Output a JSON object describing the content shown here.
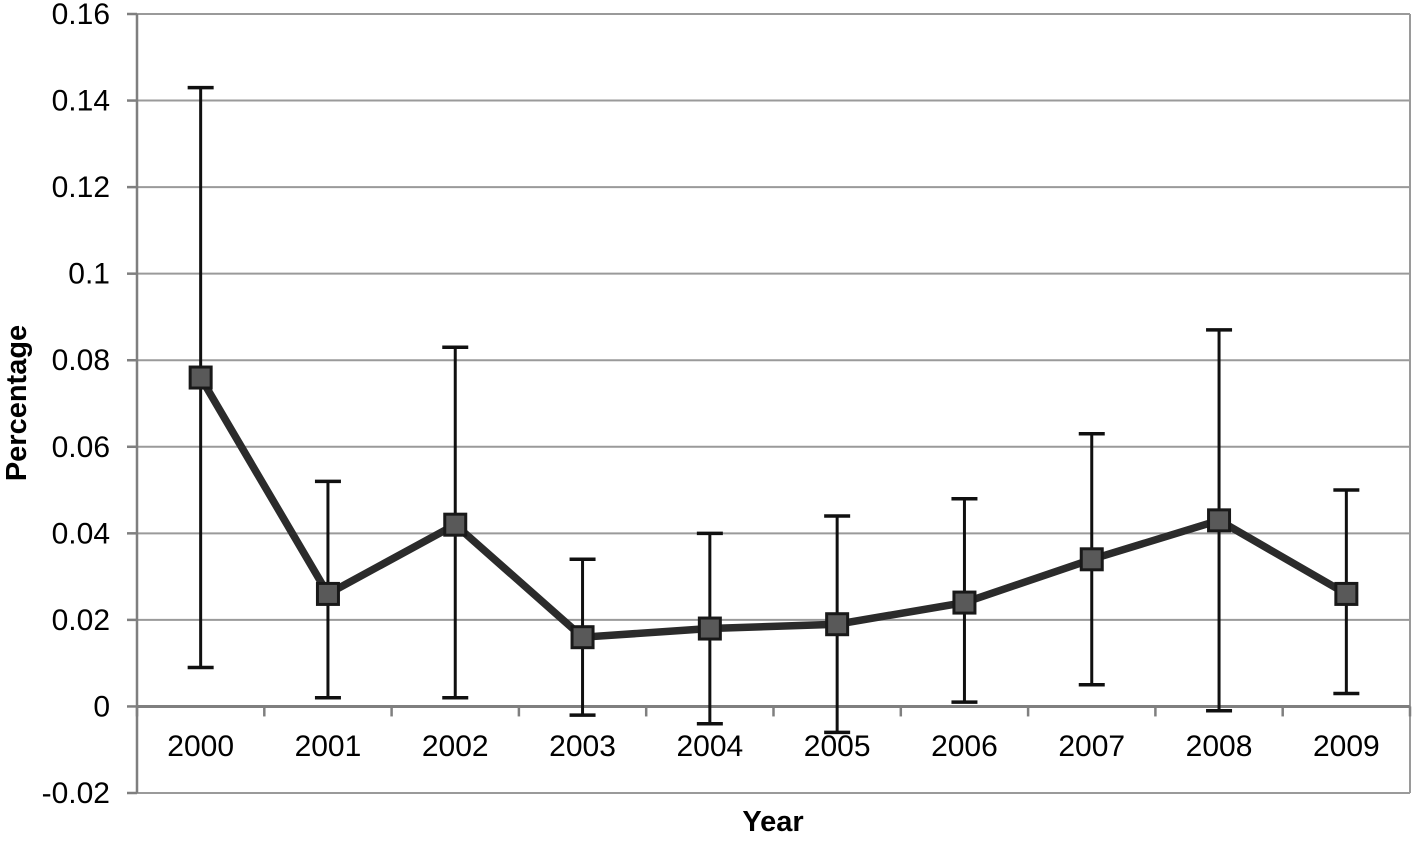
{
  "figure": {
    "background": "#ffffff"
  },
  "chart_data": {
    "type": "line",
    "title": "",
    "xlabel": "Year",
    "ylabel": "Percentage",
    "categories": [
      "2000",
      "2001",
      "2002",
      "2003",
      "2004",
      "2005",
      "2006",
      "2007",
      "2008",
      "2009"
    ],
    "series": [
      {
        "name": "Percentage",
        "values": [
          0.076,
          0.026,
          0.042,
          0.016,
          0.018,
          0.019,
          0.024,
          0.034,
          0.043,
          0.026
        ],
        "error_upper": [
          0.143,
          0.052,
          0.083,
          0.034,
          0.04,
          0.044,
          0.048,
          0.063,
          0.087,
          0.05
        ],
        "error_lower": [
          0.009,
          0.002,
          0.002,
          -0.002,
          -0.004,
          -0.006,
          0.001,
          0.005,
          -0.001,
          0.003
        ],
        "marker": "square"
      }
    ],
    "y_ticks": [
      "0.16",
      "0.14",
      "0.12",
      "0.1",
      "0.08",
      "0.06",
      "0.04",
      "0.02",
      "0",
      "-0.02"
    ],
    "ylim": [
      -0.02,
      0.16
    ],
    "grid": "horizontal",
    "legend": "none",
    "colors": {
      "line": "#2b2b2b",
      "marker_fill": "#595959",
      "marker_stroke": "#191919",
      "error_bar": "#101010",
      "gridline": "#9a9a9a",
      "axis": "#7f7f7f",
      "text": "#000000"
    }
  }
}
